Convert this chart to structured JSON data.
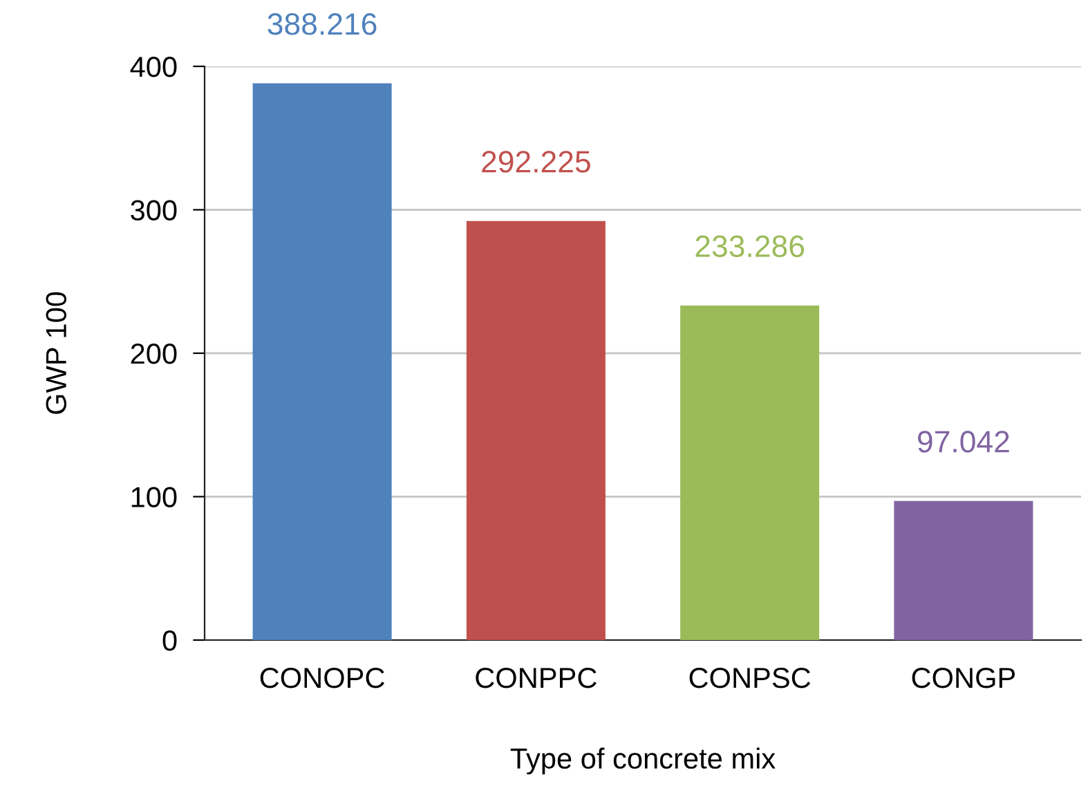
{
  "chart_data": {
    "type": "bar",
    "xlabel": "Type of concrete mix",
    "ylabel": "GWP 100",
    "categories": [
      "CONOPC",
      "CONPPC",
      "CONPSC",
      "CONGP"
    ],
    "values": [
      388.216,
      292.225,
      233.286,
      97.042
    ],
    "colors": [
      "#4f81bd",
      "#c0504d",
      "#9bbb59",
      "#8064a2"
    ],
    "ylim": [
      0,
      400
    ],
    "yticks": [
      0,
      100,
      200,
      300,
      400
    ],
    "grid": "y",
    "data_labels": true,
    "legend": false
  }
}
